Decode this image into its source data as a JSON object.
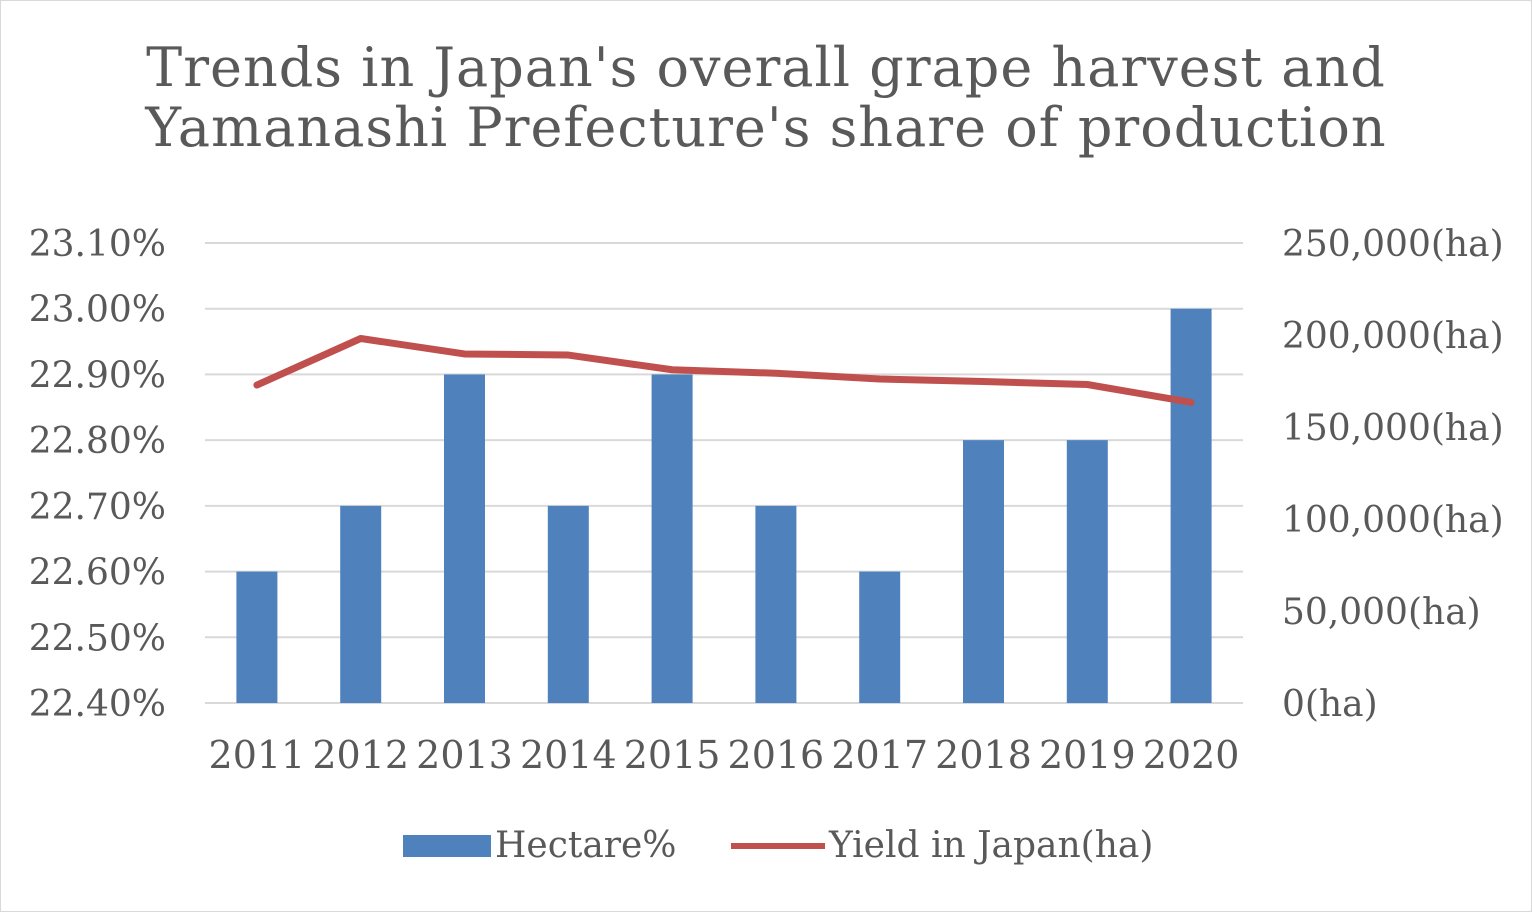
{
  "chart_data": {
    "type": "bar",
    "title_lines": [
      "Trends in Japan's overall grape harvest and",
      "Yamanashi Prefecture's share of production"
    ],
    "categories": [
      "2011",
      "2012",
      "2013",
      "2014",
      "2015",
      "2016",
      "2017",
      "2018",
      "2019",
      "2020"
    ],
    "series": [
      {
        "name": "Hectare%",
        "type": "bar",
        "axis": "left",
        "color": "#4f81bd",
        "values": [
          22.6,
          22.7,
          22.9,
          22.7,
          22.9,
          22.7,
          22.6,
          22.8,
          22.8,
          23.0
        ]
      },
      {
        "name": "Yield in Japan(ha)",
        "type": "line",
        "axis": "right",
        "color": "#c0504d",
        "values": [
          172800,
          198100,
          189700,
          189100,
          181100,
          179200,
          176100,
          174700,
          173100,
          163400
        ]
      }
    ],
    "y_left": {
      "ylim": [
        22.4,
        23.1
      ],
      "ticks": [
        22.4,
        22.5,
        22.6,
        22.7,
        22.8,
        22.9,
        23.0,
        23.1
      ],
      "tick_labels": [
        "22.40%",
        "22.50%",
        "22.60%",
        "22.70%",
        "22.80%",
        "22.90%",
        "23.00%",
        "23.10%"
      ]
    },
    "y_right": {
      "ylim": [
        0,
        250000
      ],
      "ticks": [
        0,
        50000,
        100000,
        150000,
        200000,
        250000
      ],
      "tick_labels": [
        "0(ha)",
        "50,000(ha)",
        "100,000(ha)",
        "150,000(ha)",
        "200,000(ha)",
        "250,000(ha)"
      ]
    },
    "grid": true,
    "legend_position": "bottom"
  }
}
